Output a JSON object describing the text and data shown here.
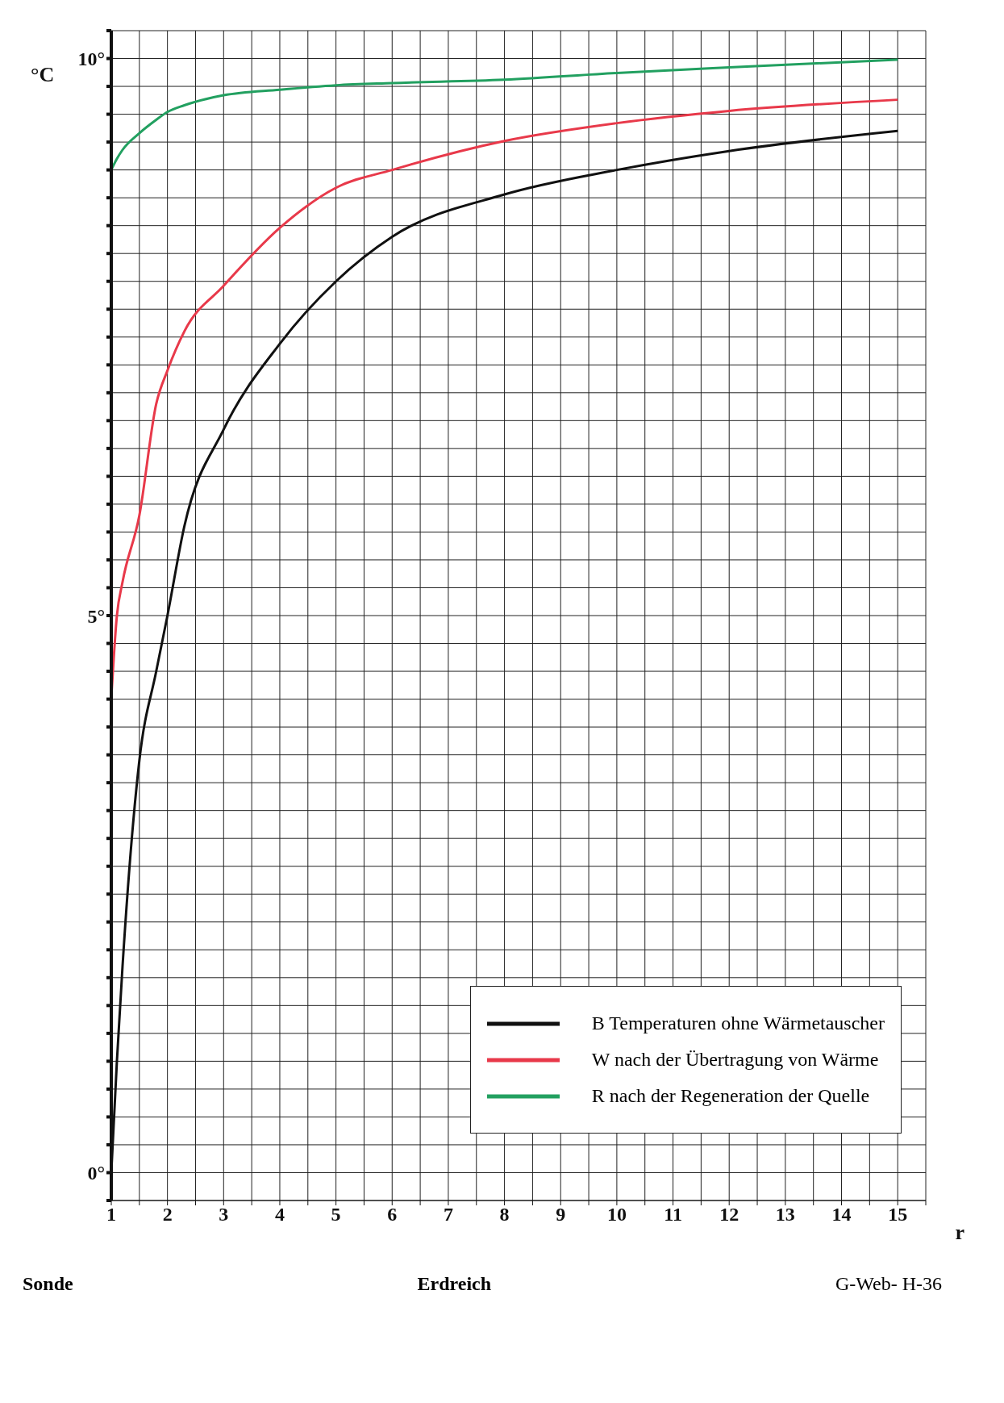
{
  "chart_data": {
    "type": "line",
    "xlabel": "r",
    "ylabel": "°C",
    "x": [
      1,
      1.1,
      1.2,
      1.5,
      1.8,
      2,
      2.3,
      3,
      4,
      5,
      6,
      8,
      10,
      12,
      15
    ],
    "series": [
      {
        "name": "B Temperaturen ohne Wärmetauscher",
        "color": "#111111",
        "values": [
          0,
          1.0,
          1.85,
          3.7,
          4.5,
          5.0,
          5.8,
          6.67,
          7.44,
          8.0,
          8.4,
          8.78,
          9.0,
          9.17,
          9.35
        ]
      },
      {
        "name": "W nach der Übertragung von Wärme",
        "color": "#e8394a",
        "values": [
          4.26,
          5.0,
          5.3,
          5.9,
          6.9,
          7.2,
          7.55,
          7.96,
          8.48,
          8.84,
          9.0,
          9.26,
          9.42,
          9.53,
          9.63
        ]
      },
      {
        "name": "R nach der Regeneration der Quelle",
        "color": "#22a060",
        "values": [
          9.0,
          9.1,
          9.18,
          9.33,
          9.45,
          9.52,
          9.58,
          9.67,
          9.72,
          9.76,
          9.78,
          9.81,
          9.87,
          9.92,
          9.99
        ]
      }
    ],
    "xlim": [
      1,
      15.5
    ],
    "xticks": [
      1,
      {
        "value": 1.5,
        "label": null
      },
      2,
      {
        "value": 2.5,
        "label": null
      },
      3,
      {
        "value": 3.5,
        "label": null
      },
      4,
      {
        "value": 4.5,
        "label": null
      },
      5,
      {
        "value": 5.5,
        "label": null
      },
      6,
      {
        "value": 6.5,
        "label": null
      },
      7,
      {
        "value": 7.5,
        "label": null
      },
      8,
      {
        "value": 8.5,
        "label": null
      },
      9,
      {
        "value": 9.5,
        "label": null
      },
      10,
      {
        "value": 10.5,
        "label": null
      },
      11,
      {
        "value": 11.5,
        "label": null
      },
      12,
      {
        "value": 12.5,
        "label": null
      },
      13,
      {
        "value": 13.5,
        "label": null
      },
      14,
      {
        "value": 14.5,
        "label": null
      },
      15,
      {
        "value": 15.5,
        "label": null
      }
    ],
    "ylim": [
      -0.25,
      10.25
    ],
    "yticks": [
      {
        "value": -0.25,
        "label": null
      },
      {
        "value": 0,
        "label": "0°"
      },
      {
        "value": 0.25,
        "label": null
      },
      {
        "value": 0.5,
        "label": null
      },
      {
        "value": 0.75,
        "label": null
      },
      {
        "value": 1,
        "label": null
      },
      {
        "value": 1.25,
        "label": null
      },
      {
        "value": 1.5,
        "label": null
      },
      {
        "value": 1.75,
        "label": null
      },
      {
        "value": 2,
        "label": null
      },
      {
        "value": 2.25,
        "label": null
      },
      {
        "value": 2.5,
        "label": null
      },
      {
        "value": 2.75,
        "label": null
      },
      {
        "value": 3,
        "label": null
      },
      {
        "value": 3.25,
        "label": null
      },
      {
        "value": 3.5,
        "label": null
      },
      {
        "value": 3.75,
        "label": null
      },
      {
        "value": 4,
        "label": null
      },
      {
        "value": 4.25,
        "label": null
      },
      {
        "value": 4.5,
        "label": null
      },
      {
        "value": 4.75,
        "label": null
      },
      {
        "value": 5,
        "label": "5°"
      },
      {
        "value": 5.25,
        "label": null
      },
      {
        "value": 5.5,
        "label": null
      },
      {
        "value": 5.75,
        "label": null
      },
      {
        "value": 6,
        "label": null
      },
      {
        "value": 6.25,
        "label": null
      },
      {
        "value": 6.5,
        "label": null
      },
      {
        "value": 6.75,
        "label": null
      },
      {
        "value": 7,
        "label": null
      },
      {
        "value": 7.25,
        "label": null
      },
      {
        "value": 7.5,
        "label": null
      },
      {
        "value": 7.75,
        "label": null
      },
      {
        "value": 8,
        "label": null
      },
      {
        "value": 8.25,
        "label": null
      },
      {
        "value": 8.5,
        "label": null
      },
      {
        "value": 8.75,
        "label": null
      },
      {
        "value": 9,
        "label": null
      },
      {
        "value": 9.25,
        "label": null
      },
      {
        "value": 9.5,
        "label": null
      },
      {
        "value": 9.75,
        "label": null
      },
      {
        "value": 10,
        "label": "10°"
      },
      {
        "value": 10.25,
        "label": null
      }
    ],
    "grid": true,
    "legend": "bottom right",
    "marker": "none",
    "line_style": "solid",
    "annotations": [
      "Sonde",
      "Erdreich",
      "G-Web- H-36"
    ]
  }
}
